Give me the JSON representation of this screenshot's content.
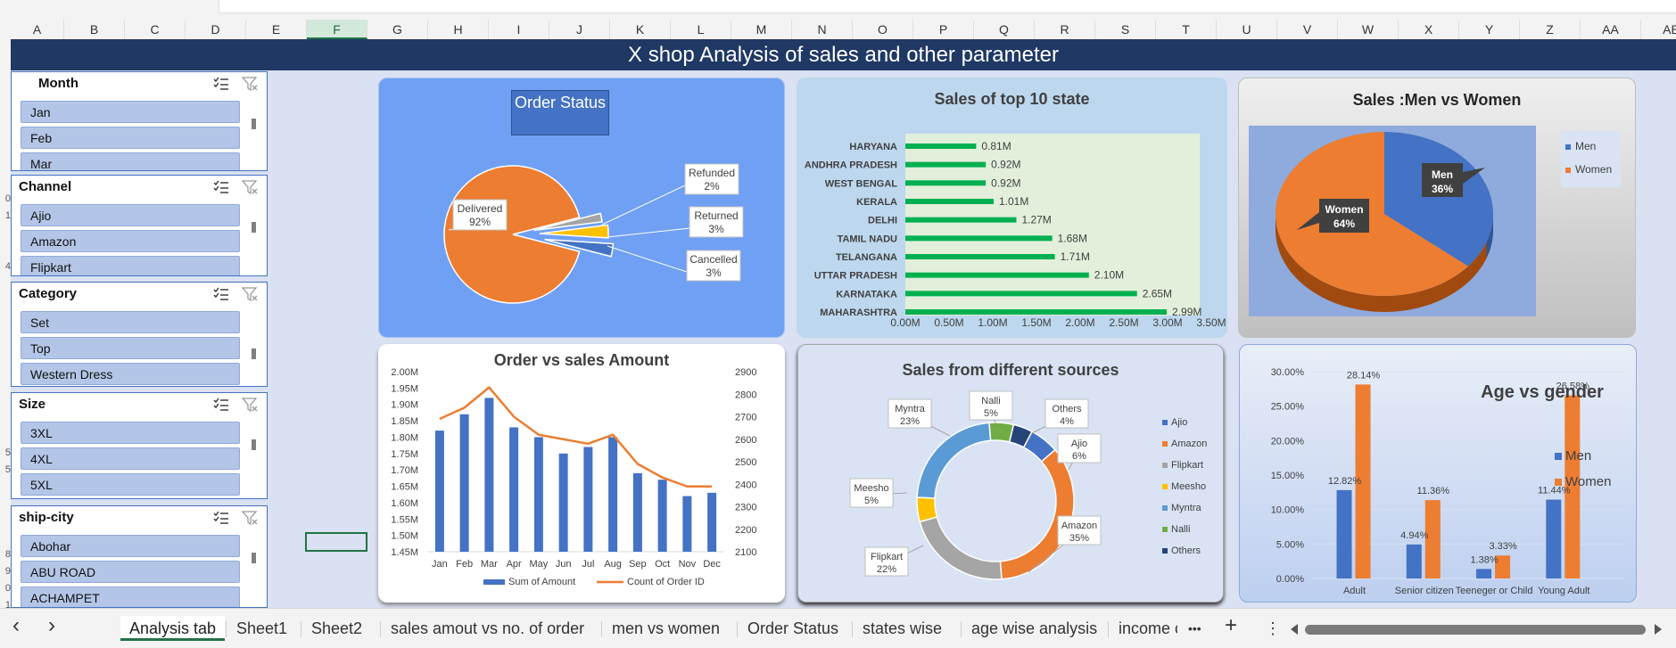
{
  "header": {
    "title": "X shop Analysis of sales and other parameter"
  },
  "columns": [
    "A",
    "B",
    "C",
    "D",
    "E",
    "F",
    "G",
    "H",
    "I",
    "J",
    "K",
    "L",
    "M",
    "N",
    "O",
    "P",
    "Q",
    "R",
    "S",
    "T",
    "U",
    "V",
    "W",
    "X",
    "Y",
    "Z",
    "AA",
    "AB"
  ],
  "rows": [
    "",
    "",
    "",
    "",
    "",
    "",
    "",
    "",
    "",
    "0",
    "1",
    "",
    "",
    "4",
    "",
    "",
    "",
    "",
    "",
    "",
    "",
    "",
    "",
    "",
    "5",
    "5",
    "",
    "",
    "",
    "",
    "8",
    "9",
    "0",
    "1"
  ],
  "slicers": [
    {
      "title": "Month",
      "items": [
        "Jan",
        "Feb",
        "Mar"
      ]
    },
    {
      "title": "Channel",
      "items": [
        "Ajio",
        "Amazon",
        "Flipkart"
      ]
    },
    {
      "title": "Category",
      "items": [
        "Set",
        "Top",
        "Western Dress"
      ]
    },
    {
      "title": "Size",
      "items": [
        "3XL",
        "4XL",
        "5XL"
      ]
    },
    {
      "title": "ship-city",
      "items": [
        "Abohar",
        "ABU ROAD",
        "ACHAMPET"
      ]
    }
  ],
  "slicer_icons": {
    "multiselect": "multi-select-icon",
    "clear": "clear-filter-icon"
  },
  "order_status": {
    "title": "Order Status",
    "labels": [
      {
        "name": "Delivered",
        "pct": "92%"
      },
      {
        "name": "Refunded",
        "pct": "2%"
      },
      {
        "name": "Returned",
        "pct": "3%"
      },
      {
        "name": "Cancelled",
        "pct": "3%"
      }
    ]
  },
  "top10": {
    "title": "Sales of top 10 state",
    "states": [
      "HARYANA",
      "ANDHRA PRADESH",
      "WEST BENGAL",
      "KERALA",
      "DELHI",
      "TAMIL NADU",
      "TELANGANA",
      "UTTAR PRADESH",
      "KARNATAKA",
      "MAHARASHTRA"
    ],
    "values": [
      0.81,
      0.92,
      0.92,
      1.01,
      1.27,
      1.68,
      1.71,
      2.1,
      2.65,
      2.99
    ],
    "value_labels": [
      "0.81M",
      "0.92M",
      "0.92M",
      "1.01M",
      "1.27M",
      "1.68M",
      "1.71M",
      "2.10M",
      "2.65M",
      "2.99M"
    ],
    "ticks": [
      "0.00M",
      "0.50M",
      "1.00M",
      "1.50M",
      "2.00M",
      "2.50M",
      "3.00M",
      "3.50M"
    ]
  },
  "men_women": {
    "title": "Sales :Men vs Women",
    "men_label": "Men",
    "men_pct": "36%",
    "women_label": "Women",
    "women_pct": "64%",
    "legend": [
      "Men",
      "Women"
    ]
  },
  "order_vs_sales": {
    "title": "Order vs sales Amount",
    "months": [
      "Jan",
      "Feb",
      "Mar",
      "Apr",
      "May",
      "Jun",
      "Jul",
      "Aug",
      "Sep",
      "Oct",
      "Nov",
      "Dec"
    ],
    "left_ticks": [
      "2.00M",
      "1.95M",
      "1.90M",
      "1.85M",
      "1.80M",
      "1.75M",
      "1.70M",
      "1.65M",
      "1.60M",
      "1.55M",
      "1.50M",
      "1.45M"
    ],
    "right_ticks": [
      "2900",
      "2800",
      "2700",
      "2600",
      "2500",
      "2400",
      "2300",
      "2200",
      "2100"
    ],
    "legend": [
      "Sum of Amount",
      "Count of Order ID"
    ]
  },
  "sources": {
    "title": "Sales from different sources",
    "labels": [
      {
        "name": "Myntra",
        "pct": "23%"
      },
      {
        "name": "Nalli",
        "pct": "5%"
      },
      {
        "name": "Others",
        "pct": "4%"
      },
      {
        "name": "Ajio",
        "pct": "6%"
      },
      {
        "name": "Meesho",
        "pct": "5%"
      },
      {
        "name": "Flipkart",
        "pct": "22%"
      },
      {
        "name": "Amazon",
        "pct": "35%"
      }
    ],
    "legend": [
      "Ajio",
      "Amazon",
      "Flipkart",
      "Meesho",
      "Myntra",
      "Nalli",
      "Others"
    ]
  },
  "age_gender": {
    "title": "Age vs gender",
    "categories": [
      "Adult",
      "Senior citizen",
      "Teeneger or Child",
      "Young Adult"
    ],
    "ticks": [
      "30.00%",
      "25.00%",
      "20.00%",
      "15.00%",
      "10.00%",
      "5.00%",
      "0.00%"
    ],
    "men_labels": [
      "12.82%",
      "4.94%",
      "1.38%",
      "11.44%"
    ],
    "women_labels": [
      "28.14%",
      "11.36%",
      "3.33%",
      "26.58%"
    ],
    "legend": [
      "Men",
      "Women"
    ]
  },
  "sheet_tabs": [
    "Analysis tab",
    "Sheet1",
    "Sheet2",
    "sales amout vs no. of order",
    "men vs women",
    "Order Status",
    "states wise",
    "age wise analysis",
    "income c"
  ],
  "controls": {
    "more": "•••",
    "add": "+",
    "menu": "⋮",
    "prev": "‹",
    "next": "›"
  },
  "colors": {
    "accent_green": "#217346",
    "title_bar": "#203864",
    "men_blue": "#4472c4",
    "women_orange": "#ed7d31",
    "bar_green": "#00b050"
  },
  "chart_data": [
    {
      "type": "pie",
      "title": "Order Status",
      "categories": [
        "Delivered",
        "Refunded",
        "Returned",
        "Cancelled"
      ],
      "values": [
        92,
        2,
        3,
        3
      ]
    },
    {
      "type": "bar",
      "title": "Sales of top 10 state",
      "orientation": "horizontal",
      "categories": [
        "HARYANA",
        "ANDHRA PRADESH",
        "WEST BENGAL",
        "KERALA",
        "DELHI",
        "TAMIL NADU",
        "TELANGANA",
        "UTTAR PRADESH",
        "KARNATAKA",
        "MAHARASHTRA"
      ],
      "values": [
        0.81,
        0.92,
        0.92,
        1.01,
        1.27,
        1.68,
        1.71,
        2.1,
        2.65,
        2.99
      ],
      "xlim": [
        0,
        3.5
      ]
    },
    {
      "type": "pie",
      "title": "Sales :Men vs Women",
      "categories": [
        "Men",
        "Women"
      ],
      "values": [
        36,
        64
      ]
    },
    {
      "type": "bar",
      "title": "Order vs sales Amount",
      "categories": [
        "Jan",
        "Feb",
        "Mar",
        "Apr",
        "May",
        "Jun",
        "Jul",
        "Aug",
        "Sep",
        "Oct",
        "Nov",
        "Dec"
      ],
      "series": [
        {
          "name": "Sum of Amount",
          "type": "bar",
          "axis": "left",
          "values": [
            1.82,
            1.87,
            1.92,
            1.83,
            1.8,
            1.75,
            1.77,
            1.8,
            1.69,
            1.67,
            1.62,
            1.63
          ]
        },
        {
          "name": "Count of Order ID",
          "type": "line",
          "axis": "right",
          "values": [
            2690,
            2740,
            2830,
            2700,
            2620,
            2600,
            2580,
            2620,
            2490,
            2430,
            2390,
            2390
          ]
        }
      ],
      "ylim_left": [
        1.45,
        2.0
      ],
      "ylim_right": [
        2100,
        2900
      ]
    },
    {
      "type": "pie",
      "title": "Sales from different sources",
      "donut": true,
      "categories": [
        "Ajio",
        "Amazon",
        "Flipkart",
        "Meesho",
        "Myntra",
        "Nalli",
        "Others"
      ],
      "values": [
        6,
        35,
        22,
        5,
        23,
        5,
        4
      ]
    },
    {
      "type": "bar",
      "title": "Age vs gender",
      "categories": [
        "Adult",
        "Senior citizen",
        "Teeneger or Child",
        "Young Adult"
      ],
      "series": [
        {
          "name": "Men",
          "values": [
            12.82,
            4.94,
            1.38,
            11.44
          ]
        },
        {
          "name": "Women",
          "values": [
            28.14,
            11.36,
            3.33,
            26.58
          ]
        }
      ],
      "ylim": [
        0,
        30
      ]
    }
  ]
}
